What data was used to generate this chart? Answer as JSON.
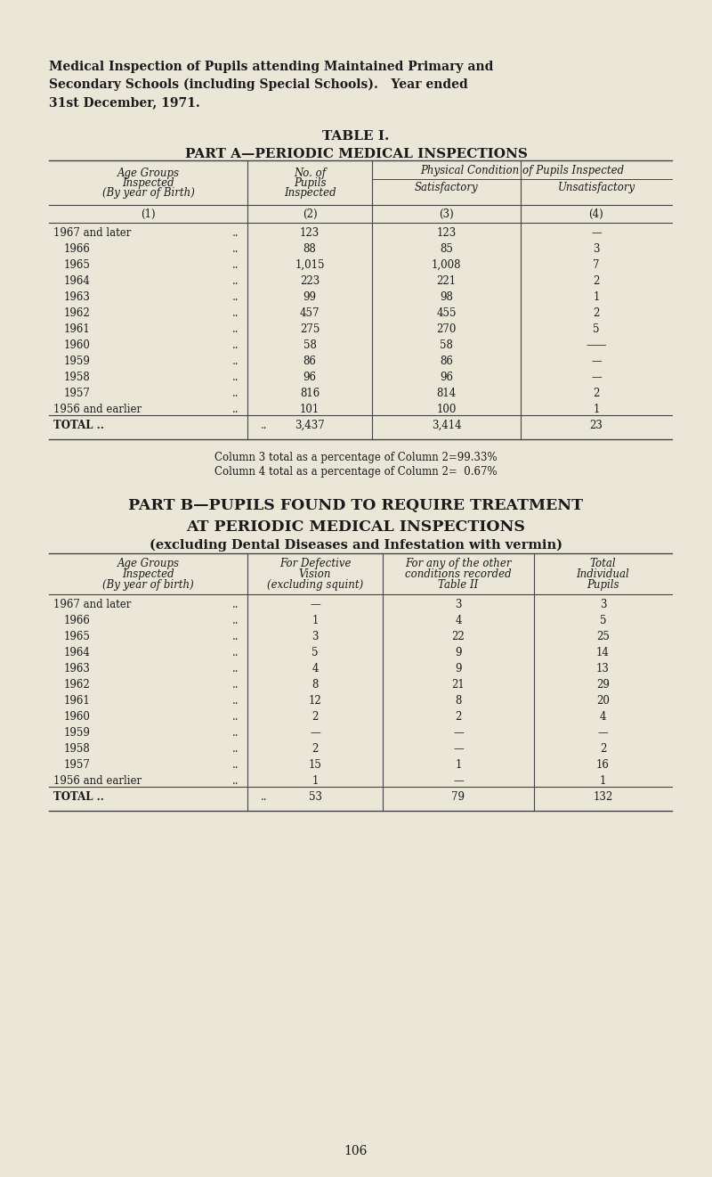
{
  "bg_color": "#eae6d8",
  "text_color": "#1a1a1a",
  "page_width": 8.0,
  "page_height": 13.21,
  "header_lines": [
    "Medical Inspection of Pupils attending Maintained Primary and",
    "Secondary Schools (including Special Schools).   Year ended",
    "31st December, 1971."
  ],
  "table1_title": "TABLE I.",
  "part_a_title": "PART A—PERIODIC MEDICAL INSPECTIONS",
  "part_a_rows": [
    [
      "1967 and later",
      "123",
      "123",
      "—"
    ],
    [
      "1966",
      "88",
      "85",
      "3"
    ],
    [
      "1965",
      "1,015",
      "1,008",
      "7"
    ],
    [
      "1964",
      "223",
      "221",
      "2"
    ],
    [
      "1963",
      "99",
      "98",
      "1"
    ],
    [
      "1962",
      "457",
      "455",
      "2"
    ],
    [
      "1961",
      "275",
      "270",
      "5"
    ],
    [
      "1960",
      "58",
      "58",
      "——"
    ],
    [
      "1959",
      "86",
      "86",
      "—"
    ],
    [
      "1958",
      "96",
      "96",
      "—"
    ],
    [
      "1957",
      "816",
      "814",
      "2"
    ],
    [
      "1956 and earlier",
      "101",
      "100",
      "1"
    ]
  ],
  "part_a_total": [
    "3,437",
    "3,414",
    "23"
  ],
  "part_a_footnote1": "Column 3 total as a percentage of Column 2=99.33%",
  "part_a_footnote2": "Column 4 total as a percentage of Column 2=  0.67%",
  "part_b_title1": "PART B—PUPILS FOUND TO REQUIRE TREATMENT",
  "part_b_title2": "AT PERIODIC MEDICAL INSPECTIONS",
  "part_b_subtitle": "(excluding Dental Diseases and Infestation with vermin)",
  "part_b_rows": [
    [
      "1967 and later",
      "—",
      "3",
      "3"
    ],
    [
      "1966",
      "1",
      "4",
      "5"
    ],
    [
      "1965",
      "3",
      "22",
      "25"
    ],
    [
      "1964",
      "5",
      "9",
      "14"
    ],
    [
      "1963",
      "4",
      "9",
      "13"
    ],
    [
      "1962",
      "8",
      "21",
      "29"
    ],
    [
      "1961",
      "12",
      "8",
      "20"
    ],
    [
      "1960",
      "2",
      "2",
      "4"
    ],
    [
      "1959",
      "—",
      "—",
      "—"
    ],
    [
      "1958",
      "2",
      "—",
      "2"
    ],
    [
      "1957",
      "15",
      "1",
      "16"
    ],
    [
      "1956 and earlier",
      "1",
      "—",
      "1"
    ]
  ],
  "part_b_total": [
    "53",
    "79",
    "132"
  ],
  "page_number": "106"
}
